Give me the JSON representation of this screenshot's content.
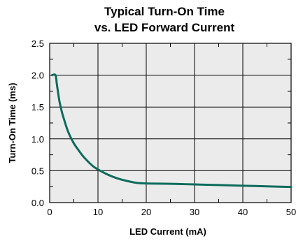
{
  "chart_data": {
    "type": "line",
    "title_line1": "Typical Turn-On Time",
    "title_line2": "vs. LED Forward Current",
    "xlabel": "LED Current (mA)",
    "ylabel": "Turn-On Time (ms)",
    "xlim": [
      0,
      50
    ],
    "ylim": [
      0,
      2.5
    ],
    "x_ticks": [
      "0",
      "10",
      "20",
      "30",
      "40",
      "50"
    ],
    "y_ticks": [
      "0.0",
      "0.5",
      "1.0",
      "1.5",
      "2.0",
      "2.5"
    ],
    "grid": true,
    "series": [
      {
        "color": "#0d6b5c",
        "x": [
          0.5,
          1.2,
          1.5,
          2,
          2.5,
          3,
          3.5,
          4,
          5,
          6,
          7,
          8,
          9,
          10,
          12,
          14,
          16,
          18,
          20,
          25,
          30,
          35,
          40,
          45,
          50
        ],
        "y": [
          2.0,
          2.0,
          1.85,
          1.6,
          1.43,
          1.3,
          1.18,
          1.08,
          0.93,
          0.82,
          0.72,
          0.64,
          0.57,
          0.52,
          0.44,
          0.38,
          0.34,
          0.31,
          0.3,
          0.295,
          0.285,
          0.275,
          0.265,
          0.255,
          0.245
        ]
      }
    ]
  },
  "colors": {
    "plot_background": "#ebebeb",
    "grid": "#000000",
    "series": "#0d6b5c"
  }
}
